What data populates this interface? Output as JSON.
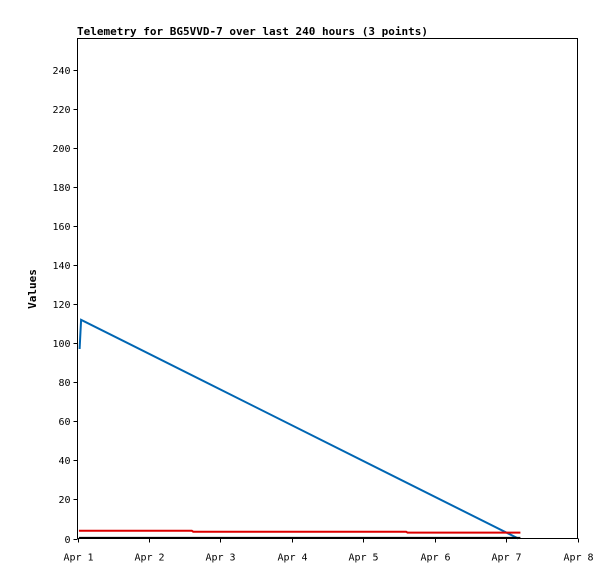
{
  "chart_data": {
    "type": "line",
    "title": "Telemetry for BG5VVD-7 over last 240 hours (3 points)",
    "xlabel": "",
    "ylabel": "Values",
    "x_ticks": [
      "Apr 1",
      "Apr 2",
      "Apr 3",
      "Apr 4",
      "Apr 5",
      "Apr 6",
      "Apr 7",
      "Apr 8"
    ],
    "x_range_days": [
      1,
      8
    ],
    "y_ticks": [
      0,
      20,
      40,
      60,
      80,
      100,
      120,
      140,
      160,
      180,
      200,
      220,
      240
    ],
    "ylim": [
      0,
      256
    ],
    "grid": false,
    "series": [
      {
        "color": "#0066b3",
        "points": [
          [
            1.03,
            97
          ],
          [
            1.05,
            112
          ],
          [
            7.17,
            0
          ]
        ]
      },
      {
        "color": "#dd0000",
        "points": [
          [
            1.02,
            4
          ],
          [
            2.6,
            4
          ],
          [
            2.62,
            3.5
          ],
          [
            5.6,
            3.5
          ],
          [
            5.62,
            3
          ],
          [
            7.2,
            3
          ]
        ]
      },
      {
        "color": "#000000",
        "points": [
          [
            1.02,
            0.3
          ],
          [
            7.2,
            0.3
          ]
        ]
      }
    ]
  }
}
